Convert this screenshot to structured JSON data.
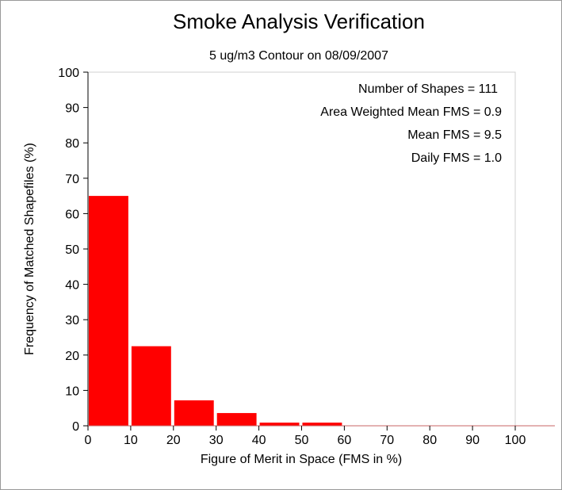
{
  "chart_data": {
    "type": "bar",
    "title": "Smoke Analysis Verification",
    "subtitle": "5 ug/m3 Contour on 08/09/2007",
    "xlabel": "Figure of Merit in Space (FMS in %)",
    "ylabel": "Frequency of Matched Shapefiles (%)",
    "xlim": [
      0,
      100
    ],
    "ylim": [
      0,
      100
    ],
    "x_ticks": [
      "0",
      "10",
      "20",
      "30",
      "40",
      "50",
      "60",
      "70",
      "80",
      "90",
      "100"
    ],
    "y_ticks": [
      "0",
      "10",
      "20",
      "30",
      "40",
      "50",
      "60",
      "70",
      "80",
      "90",
      "100"
    ],
    "bins": [
      [
        0,
        10
      ],
      [
        10,
        20
      ],
      [
        20,
        30
      ],
      [
        30,
        40
      ],
      [
        40,
        50
      ],
      [
        50,
        60
      ],
      [
        60,
        70
      ],
      [
        70,
        80
      ],
      [
        80,
        90
      ],
      [
        90,
        100
      ]
    ],
    "values": [
      65.0,
      22.5,
      7.2,
      3.6,
      0.9,
      0.9,
      0.0,
      0.0,
      0.0,
      0.0
    ],
    "bar_color": "#ff0000",
    "grid": false,
    "legend": "none",
    "annotations": [
      "Number of Shapes = 111",
      "Area Weighted Mean FMS = 0.9",
      "Mean FMS = 9.5",
      "Daily FMS = 1.0"
    ]
  }
}
